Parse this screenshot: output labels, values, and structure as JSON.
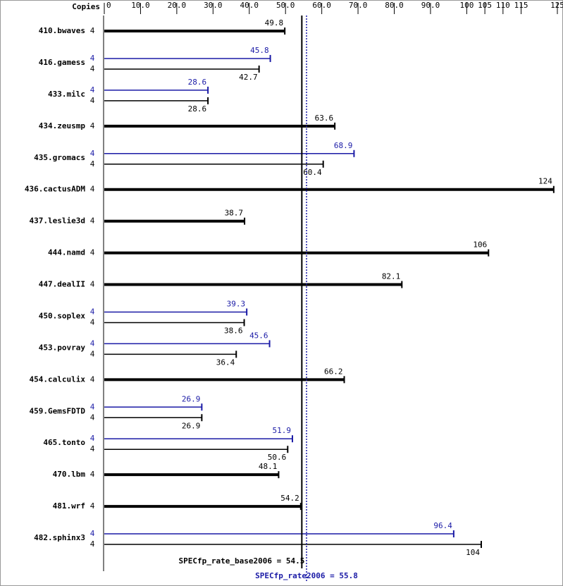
{
  "chart_data": {
    "type": "spec-bar",
    "copies_label": "Copies",
    "categories": [
      "410.bwaves",
      "416.gamess",
      "433.milc",
      "434.zeusmp",
      "435.gromacs",
      "436.cactusADM",
      "437.leslie3d",
      "444.namd",
      "447.dealII",
      "450.soplex",
      "453.povray",
      "454.calculix",
      "459.GemsFDTD",
      "465.tonto",
      "470.lbm",
      "481.wrf",
      "482.sphinx3"
    ],
    "series": [
      {
        "color": "#000000",
        "copies": [
          4,
          4,
          4,
          4,
          4,
          4,
          4,
          4,
          4,
          4,
          4,
          4,
          4,
          4,
          4,
          4,
          4
        ],
        "values": [
          49.8,
          42.7,
          28.6,
          63.6,
          60.4,
          124,
          38.7,
          106,
          82.1,
          38.6,
          36.4,
          66.2,
          26.9,
          50.6,
          48.1,
          54.2,
          104
        ]
      },
      {
        "color": "#1a1aa6",
        "copies": [
          null,
          4,
          4,
          null,
          4,
          null,
          null,
          null,
          null,
          4,
          4,
          null,
          4,
          4,
          null,
          null,
          4
        ],
        "values": [
          null,
          45.8,
          28.6,
          null,
          68.9,
          null,
          null,
          null,
          null,
          39.3,
          45.6,
          null,
          26.9,
          51.9,
          null,
          null,
          96.4
        ]
      }
    ],
    "xlim": [
      0,
      125
    ],
    "xticks": [
      0,
      {
        "value": 10,
        "label": "10.0"
      },
      {
        "value": 20,
        "label": "20.0"
      },
      {
        "value": 30,
        "label": "30.0"
      },
      {
        "value": 40,
        "label": "40.0"
      },
      {
        "value": 50,
        "label": "50.0"
      },
      {
        "value": 60,
        "label": "60.0"
      },
      {
        "value": 70,
        "label": "70.0"
      },
      {
        "value": 80,
        "label": "80.0"
      },
      {
        "value": 90,
        "label": "90.0"
      },
      100,
      105,
      110,
      115,
      125
    ],
    "reference_lines": [
      {
        "label": "SPECfp_rate_base2006 = 54.5",
        "value": 54.5,
        "color": "#000000",
        "dashed": false
      },
      {
        "label": "SPECfp_rate2006 = 55.8",
        "value": 55.8,
        "color": "#1a1aa6",
        "dashed": true
      }
    ]
  }
}
